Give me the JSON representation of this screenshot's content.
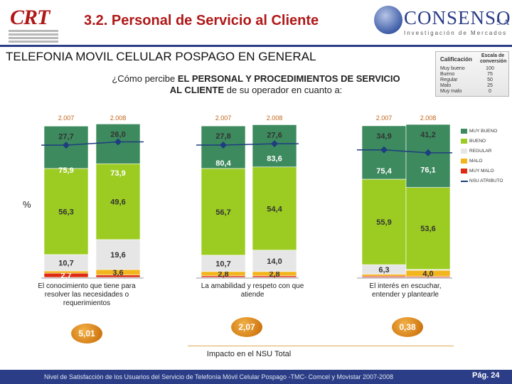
{
  "header": {
    "logo_left": "CRT",
    "title": "3.2. Personal de Servicio al Cliente",
    "logo_right": "CONSENSO",
    "logo_right_suffix": "S.A",
    "logo_right_tagline": "Investigación de Mercados"
  },
  "subtitle": "TELEFONIA MOVIL CELULAR POSPAGO EN GENERAL",
  "question": {
    "prefix": "¿Cómo percibe ",
    "bold": "EL PERSONAL Y PROCEDIMIENTOS DE SERVICIO AL CLIENTE",
    "suffix": " de su operador en cuanto a:"
  },
  "scale": {
    "col1": "Calificación",
    "col2": "Escala de conversión",
    "rows": [
      {
        "label": "Muy bueno",
        "value": "100"
      },
      {
        "label": "Bueno",
        "value": "75"
      },
      {
        "label": "Regular",
        "value": "50"
      },
      {
        "label": "Malo",
        "value": "25"
      },
      {
        "label": "Muy malo",
        "value": "0"
      }
    ]
  },
  "chart_data": {
    "type": "bar",
    "stacked": true,
    "ylabel": "%",
    "ylim": [
      0,
      100
    ],
    "groups": [
      {
        "caption": "El conocimiento que tiene para resolver las necesidades o requerimientos",
        "impact": "5,01",
        "bars": [
          {
            "year": "2.007",
            "muy_malo": 2.7,
            "malo": 1.5,
            "regular": 10.7,
            "bueno": 56.3,
            "muy_bueno": 27.7,
            "nsu": "75,9",
            "nsu_value": 75.9,
            "labels": {
              "muy_malo": "2,7",
              "regular": "10,7",
              "bueno": "56,3",
              "muy_bueno": "27,7"
            }
          },
          {
            "year": "2.008",
            "muy_malo": 1.5,
            "malo": 3.6,
            "regular": 19.6,
            "bueno": 49.6,
            "muy_bueno": 26.0,
            "nsu": "73,9",
            "nsu_value": 73.9,
            "labels": {
              "malo": "3,6",
              "regular": "19,6",
              "bueno": "49,6",
              "muy_bueno": "26,0"
            }
          }
        ]
      },
      {
        "caption": "La amabilidad y respeto con que atiende",
        "impact": "2,07",
        "bars": [
          {
            "year": "2.007",
            "muy_malo": 1.0,
            "malo": 2.8,
            "regular": 10.7,
            "bueno": 56.7,
            "muy_bueno": 27.8,
            "nsu": "80,4",
            "nsu_value": 80.4,
            "labels": {
              "malo": "2,8",
              "regular": "10,7",
              "bueno": "56,7",
              "muy_bueno": "27,8"
            }
          },
          {
            "year": "2.008",
            "muy_malo": 1.0,
            "malo": 2.8,
            "regular": 14.0,
            "bueno": 54.4,
            "muy_bueno": 27.6,
            "nsu": "83,6",
            "nsu_value": 83.6,
            "labels": {
              "malo": "2,8",
              "regular": "14,0",
              "bueno": "54,4",
              "muy_bueno": "27,6"
            }
          }
        ]
      },
      {
        "caption": "El interés en escuchar, entender y plantearle",
        "impact": "0,38",
        "bars": [
          {
            "year": "2.007",
            "muy_malo": 0.8,
            "malo": 1.2,
            "regular": 6.3,
            "bueno": 55.9,
            "muy_bueno": 34.9,
            "nsu": "75,4",
            "nsu_value": 75.4,
            "labels": {
              "regular": "6,3",
              "bueno": "55,9",
              "muy_bueno": "34,9"
            }
          },
          {
            "year": "2.008",
            "muy_malo": 0.6,
            "malo": 4.0,
            "regular": 0.6,
            "bueno": 53.6,
            "muy_bueno": 41.2,
            "nsu": "76,1",
            "nsu_value": 76.1,
            "labels": {
              "malo": "4,0",
              "bueno": "53,6",
              "muy_bueno": "41,2"
            }
          }
        ]
      }
    ],
    "legend": [
      "MUY BUENO",
      "BUENO",
      "REGULAR",
      "MALO",
      "MUY MALO",
      "NSU ATRIBUTO"
    ],
    "colors": {
      "muy_bueno": "#3d8a5e",
      "bueno": "#9ccc22",
      "regular": "#e6e6e6",
      "malo": "#f2b51d",
      "muy_malo": "#dd2a10",
      "nsu": "#1e3d80"
    }
  },
  "impact_label": "Impacto en el NSU Total",
  "footer": {
    "text": "Nivel de Satisfacción de los Usuarios del Servicio de Telefonía Móvil Celular Pospago -TMC- Comcel y Movistar 2007-2008",
    "page": "Pág. 24"
  }
}
